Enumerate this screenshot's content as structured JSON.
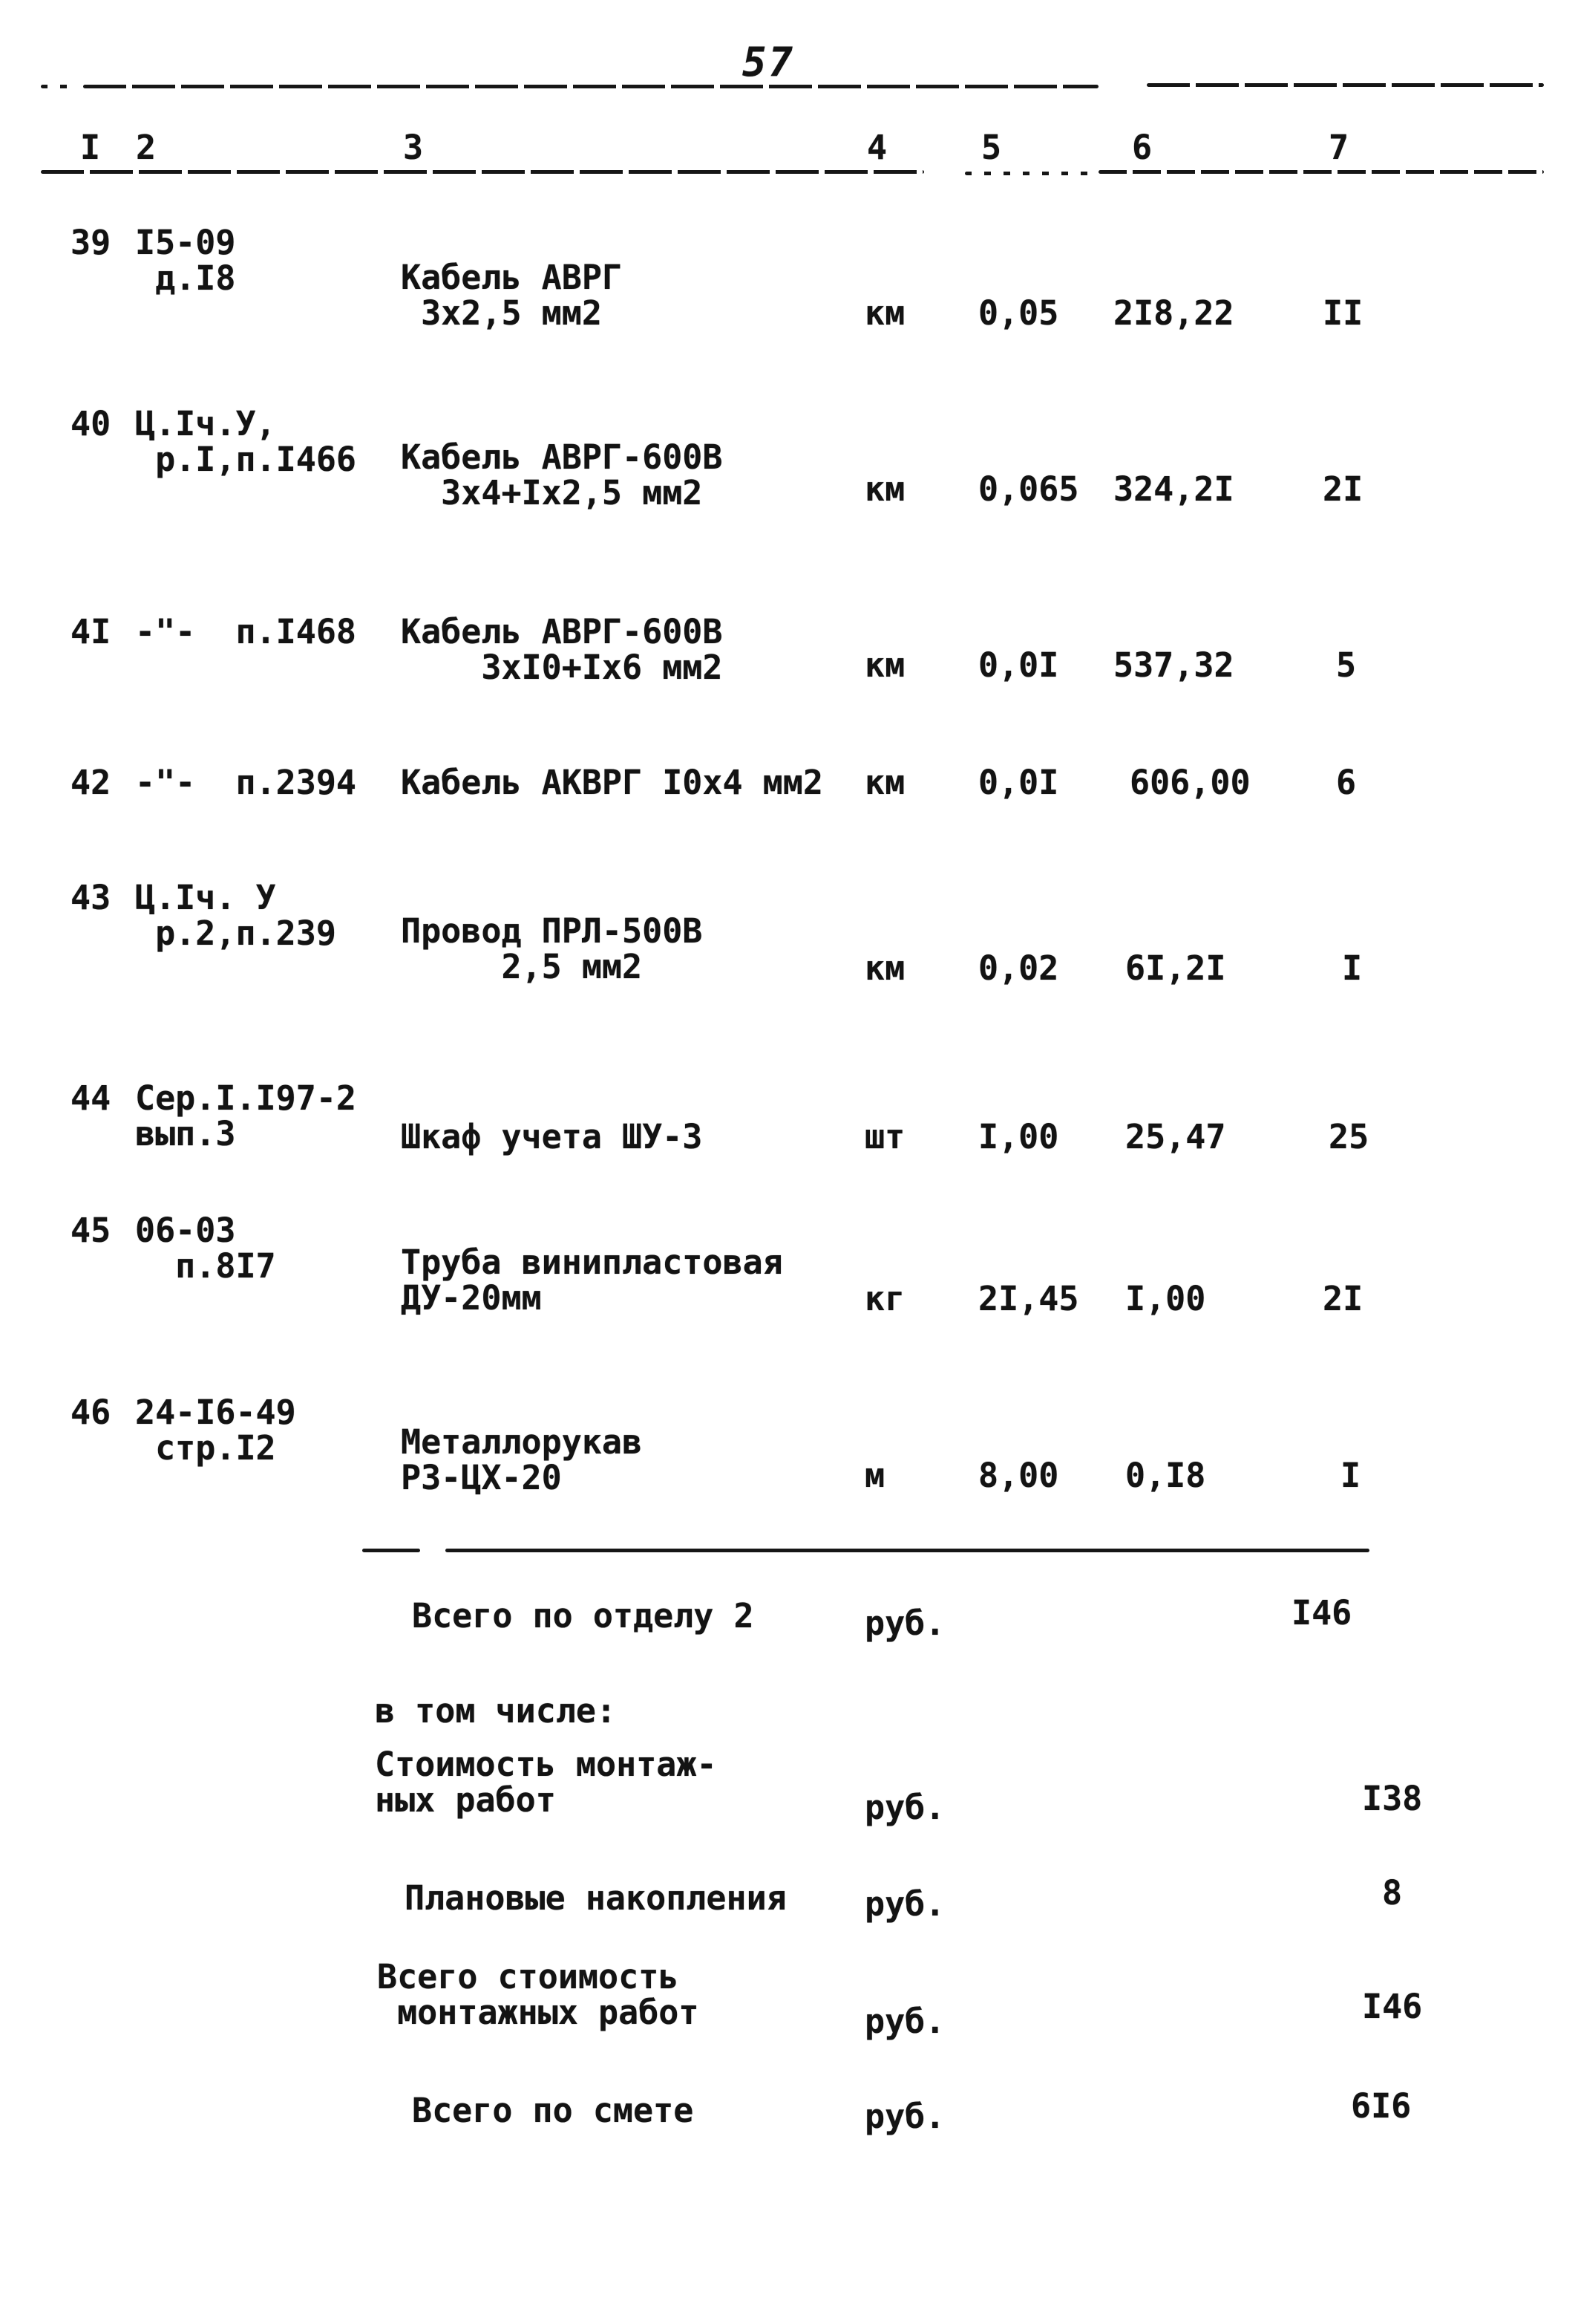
{
  "page": {
    "number": "57"
  },
  "table": {
    "columns": [
      "I",
      "2",
      "3",
      "4",
      "5",
      "6",
      "7"
    ],
    "rows": [
      {
        "num": "39",
        "basis": "I5-09\n д.I8",
        "name": "Кабель АВРГ\n 3х2,5 мм2",
        "unit": "км",
        "qty": "0,05",
        "price": "2I8,22",
        "total": "II"
      },
      {
        "num": "40",
        "basis": "Ц.Iч.У,\n р.I,п.I466",
        "name": "Кабель АВРГ-600В\n  3х4+Iх2,5 мм2",
        "unit": "км",
        "qty": "0,065",
        "price": "324,2I",
        "total": "2I"
      },
      {
        "num": "4I",
        "basis": "-\"-  п.I468",
        "name": "Кабель АВРГ-600В\n    3хI0+Iх6 мм2",
        "unit": "км",
        "qty": "0,0I",
        "price": "537,32",
        "total": "5"
      },
      {
        "num": "42",
        "basis": "-\"-  п.2394",
        "name": "Кабель АКВРГ I0х4 мм2",
        "unit": "км",
        "qty": "0,0I",
        "price": "606,00",
        "total": "6"
      },
      {
        "num": "43",
        "basis": "Ц.Iч. У\n р.2,п.239",
        "name": "Провод ПРЛ-500В\n     2,5 мм2",
        "unit": "км",
        "qty": "0,02",
        "price": "6I,2I",
        "total": "I"
      },
      {
        "num": "44",
        "basis": "Сер.I.I97-2\nвып.3",
        "name": "Шкаф учета ШУ-3",
        "unit": "шт",
        "qty": "I,00",
        "price": "25,47",
        "total": "25"
      },
      {
        "num": "45",
        "basis": "06-03\n  п.8I7",
        "name": "Труба винипластовая\nДУ-20мм",
        "unit": "кг",
        "qty": "2I,45",
        "price": "I,00",
        "total": "2I"
      },
      {
        "num": "46",
        "basis": "24-I6-49\n стр.I2",
        "name": "Металлорукав\nР3-ЦХ-20",
        "unit": "м",
        "qty": "8,00",
        "price": "0,I8",
        "total": "I"
      }
    ]
  },
  "summary": {
    "total_dept": {
      "label": "Всего по отделу 2",
      "unit": "руб.",
      "value": "I46"
    },
    "including": {
      "label": "в том числе:"
    },
    "install_cost": {
      "label": "Стоимость монтаж-\nных работ",
      "unit": "руб.",
      "value": "I38"
    },
    "planned_savings": {
      "label": "Плановые накопления",
      "unit": "руб.",
      "value": "8"
    },
    "total_install": {
      "label": "Всего стоимость\n монтажных работ",
      "unit": "руб.",
      "value": "I46"
    },
    "total_estimate": {
      "label": "Всего по смете",
      "unit": "руб.",
      "value": "6I6"
    }
  }
}
